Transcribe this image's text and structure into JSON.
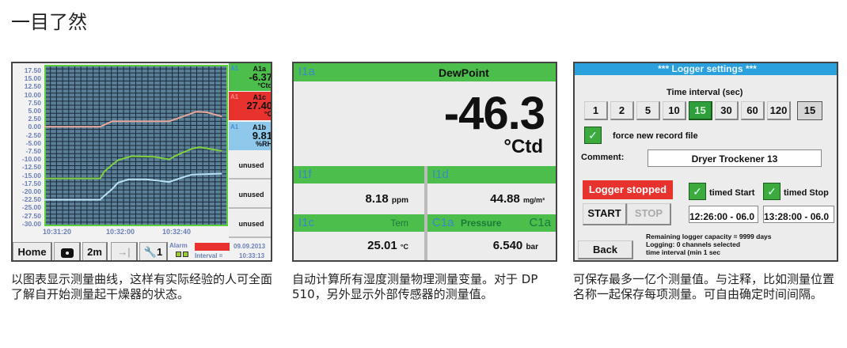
{
  "page_title": "一目了然",
  "panel1": {
    "y_ticks": [
      "17.50",
      "15.00",
      "12.50",
      "10.00",
      "7.50",
      "5.00",
      "2.50",
      "0.00",
      "-2.50",
      "-5.00",
      "-7.50",
      "-10.00",
      "-12.50",
      "-15.00",
      "-17.50",
      "-20.00",
      "-22.50",
      "-25.00",
      "-27.50",
      "-30.00"
    ],
    "x_ticks": [
      "10:31:20",
      "10:32:00",
      "10:32:40"
    ],
    "channels": [
      {
        "tag": "A1",
        "name": "A1a",
        "value": "-6.37",
        "unit": "°Ctd",
        "color": "#4cbe4c"
      },
      {
        "tag": "A1",
        "name": "A1c",
        "value": "27.40",
        "unit": "°C",
        "color": "#e8322e"
      },
      {
        "tag": "A1",
        "name": "A1b",
        "value": "9.81",
        "unit": "%RH",
        "color": "#8ec8ea"
      }
    ],
    "unused": [
      "unused",
      "unused",
      "unused"
    ],
    "toolbar": {
      "home": "Home",
      "camera": "camera-icon",
      "range": "2m",
      "jump": "→|",
      "tool_count": "1",
      "alarm": "Alarm",
      "interval": "Interval =",
      "date": "09.09.2013",
      "time": "10:33:13"
    },
    "chart_data": {
      "type": "line",
      "ylim": [
        -30,
        20
      ],
      "xlim": [
        "10:31:12",
        "10:33:14"
      ],
      "grid": true,
      "series": [
        {
          "color": "#e9a89a",
          "points": [
            [
              "10:31:12",
              0.8
            ],
            [
              "10:31:49",
              0.8
            ],
            [
              "10:31:57",
              2.5
            ],
            [
              "10:32:35",
              2.5
            ],
            [
              "10:32:53",
              5.5
            ],
            [
              "10:33:00",
              5.3
            ],
            [
              "10:33:10",
              4.0
            ]
          ]
        },
        {
          "color": "#7fd040",
          "points": [
            [
              "10:31:12",
              -15.2
            ],
            [
              "10:31:49",
              -15.2
            ],
            [
              "10:31:52",
              -13
            ],
            [
              "10:31:57",
              -11
            ],
            [
              "10:32:01",
              -9.5
            ],
            [
              "10:32:10",
              -8.3
            ],
            [
              "10:32:25",
              -8.5
            ],
            [
              "10:32:35",
              -9.3
            ],
            [
              "10:32:40",
              -8
            ],
            [
              "10:32:50",
              -6
            ],
            [
              "10:32:55",
              -5.5
            ],
            [
              "10:33:10",
              -6.7
            ]
          ]
        },
        {
          "color": "#b8e2f4",
          "points": [
            [
              "10:31:12",
              -21.8
            ],
            [
              "10:31:49",
              -21.8
            ],
            [
              "10:31:52",
              -20.5
            ],
            [
              "10:31:57",
              -18.5
            ],
            [
              "10:32:01",
              -16.5
            ],
            [
              "10:32:08",
              -15.5
            ],
            [
              "10:32:20",
              -15.5
            ],
            [
              "10:32:35",
              -16.3
            ],
            [
              "10:32:43",
              -15
            ],
            [
              "10:32:50",
              -14
            ],
            [
              "10:33:10",
              -13.7
            ]
          ]
        }
      ]
    }
  },
  "panel2": {
    "main": {
      "id": "I1a",
      "label": "DewPoint",
      "value": "-46.3",
      "unit": "°Ctd"
    },
    "cells": [
      {
        "id": "I1f",
        "label": "",
        "value": "8.18",
        "unit": "ppm"
      },
      {
        "id": "I1d",
        "label": "",
        "value": "44.88",
        "unit": "mg/m³"
      },
      {
        "id": "I1c",
        "label": "Tem",
        "value": "25.01",
        "unit": "°C"
      },
      {
        "id": "C1a",
        "label": "Pressure",
        "label2": "C1a",
        "value": "6.540",
        "unit": "bar"
      }
    ]
  },
  "panel3": {
    "header": "***  Logger settings  ***",
    "interval_label": "Time interval (sec)",
    "intervals": [
      "1",
      "2",
      "5",
      "10",
      "15",
      "30",
      "60",
      "120"
    ],
    "selected_interval": "15",
    "custom_interval": "15",
    "force_new": "force new record file",
    "comment_label": "Comment:",
    "comment_value": "Dryer Trockener 13",
    "status": "Logger stopped",
    "start": "START",
    "stop": "STOP",
    "timed_start": "timed Start",
    "timed_stop": "timed Stop",
    "start_time": "12:26:00 - 06.0",
    "stop_time": "13:28:00 - 06.0",
    "back": "Back",
    "info": [
      "Remaining logger capacity = 9999 days",
      "Logging: 0 channels selected",
      "time interval (min 1 sec"
    ]
  },
  "captions": [
    "以图表显示测量曲线，这样有实际经验的人可全面了解自开始测量起干燥器的状态。",
    "自动计算所有湿度测量物理测量变量。对于 DP 510，另外显示外部传感器的测量值。",
    "可保存最多一亿个测量值。与注释，比如测量位置名称一起保存每项测量。可自由确定时间间隔。"
  ]
}
